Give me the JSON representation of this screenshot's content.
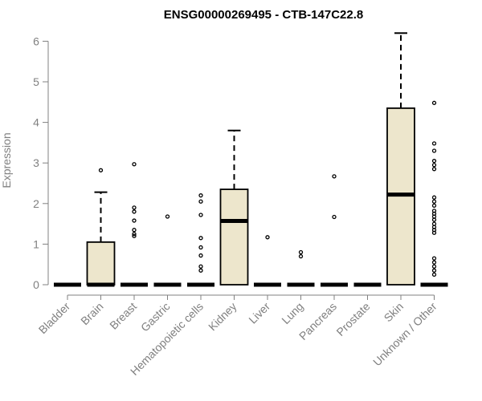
{
  "chart_data": {
    "type": "boxplot",
    "title": "ENSG00000269495 - CTB-147C22.8",
    "ylabel": "Expression",
    "xlabel": "",
    "ylim": [
      0,
      6.2
    ],
    "yticks": [
      0,
      1,
      2,
      3,
      4,
      5,
      6
    ],
    "colors": {
      "box_fill": "#ede6cc",
      "box_stroke": "#000000",
      "axis": "#808080"
    },
    "categories": [
      "Bladder",
      "Brain",
      "Breast",
      "Gastric",
      "Hematopoietic cells",
      "Kidney",
      "Liver",
      "Lung",
      "Pancreas",
      "Prostate",
      "Skin",
      "Unknown / Other"
    ],
    "boxes": [
      {
        "category": "Bladder",
        "min": 0,
        "q1": 0,
        "median": 0,
        "q3": 0,
        "max": 0,
        "outliers": []
      },
      {
        "category": "Brain",
        "min": 0,
        "q1": 0,
        "median": 0,
        "q3": 1.05,
        "max": 2.28,
        "outliers": [
          2.82
        ]
      },
      {
        "category": "Breast",
        "min": 0,
        "q1": 0,
        "median": 0,
        "q3": 0,
        "max": 0,
        "outliers": [
          2.97,
          1.9,
          1.8,
          1.58,
          1.35,
          1.25,
          1.2
        ]
      },
      {
        "category": "Gastric",
        "min": 0,
        "q1": 0,
        "median": 0,
        "q3": 0,
        "max": 0,
        "outliers": [
          1.68
        ]
      },
      {
        "category": "Hematopoietic cells",
        "min": 0,
        "q1": 0,
        "median": 0,
        "q3": 0,
        "max": 0,
        "outliers": [
          2.2,
          2.05,
          1.72,
          1.15,
          0.92,
          0.72,
          0.45,
          0.35
        ]
      },
      {
        "category": "Kidney",
        "min": 0,
        "q1": 0,
        "median": 1.57,
        "q3": 2.35,
        "max": 3.8,
        "outliers": []
      },
      {
        "category": "Liver",
        "min": 0,
        "q1": 0,
        "median": 0,
        "q3": 0,
        "max": 0,
        "outliers": [
          1.17
        ]
      },
      {
        "category": "Lung",
        "min": 0,
        "q1": 0,
        "median": 0,
        "q3": 0,
        "max": 0,
        "outliers": [
          0.8,
          0.7
        ]
      },
      {
        "category": "Pancreas",
        "min": 0,
        "q1": 0,
        "median": 0,
        "q3": 0,
        "max": 0,
        "outliers": [
          2.67,
          1.67
        ]
      },
      {
        "category": "Prostate",
        "min": 0,
        "q1": 0,
        "median": 0,
        "q3": 0,
        "max": 0,
        "outliers": []
      },
      {
        "category": "Skin",
        "min": 0,
        "q1": 0,
        "median": 2.22,
        "q3": 4.35,
        "max": 6.2,
        "outliers": []
      },
      {
        "category": "Unknown / Other",
        "min": 0,
        "q1": 0,
        "median": 0,
        "q3": 0,
        "max": 0,
        "outliers": [
          4.48,
          3.48,
          3.3,
          3.05,
          2.95,
          2.85,
          2.15,
          2.05,
          1.95,
          1.82,
          1.75,
          1.68,
          1.6,
          1.5,
          1.42,
          1.35,
          1.28,
          0.65,
          0.55,
          0.45,
          0.35,
          0.25
        ]
      }
    ]
  }
}
